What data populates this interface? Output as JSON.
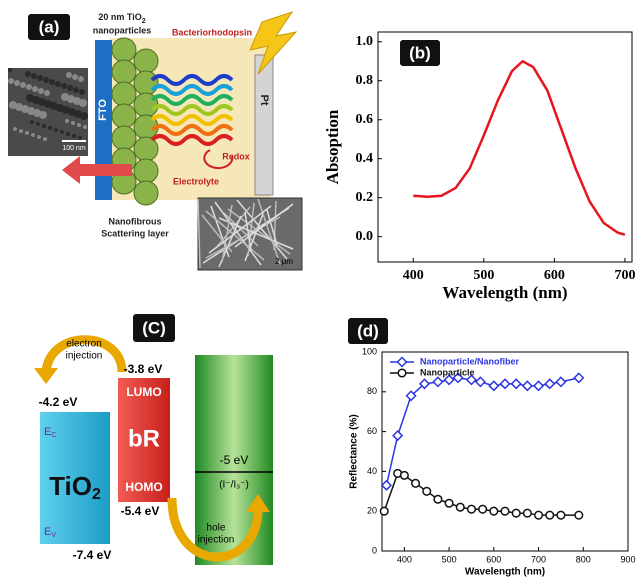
{
  "panel_a": {
    "label": "(a)",
    "nanoparticles": {
      "size": "20 nm TiO",
      "subscript": "2",
      "line2": "nanoparticles"
    },
    "bacteriorhodopsin": "Bacteriorhodopsin",
    "fto": "FTO",
    "pt": "Pt",
    "sem_scale": "100 nm",
    "redox": "Redox",
    "electrolyte": "Electrolyte",
    "scattering_layer": [
      "Nanofibrous",
      "Scattering layer"
    ],
    "fiber_scale": "2 μm"
  },
  "panel_c": {
    "label": "(C)",
    "electron_injection": [
      "electron",
      "injection"
    ],
    "lumo_energy": "-3.8 eV",
    "tio2_cb_energy": "-4.2 eV",
    "lumo": "LUMO",
    "br": "bR",
    "redox_energy": "-5 eV",
    "redox_couple": "(I⁻/I₃⁻)",
    "homo": "HOMO",
    "homo_energy": "-5.4 eV",
    "tio2": {
      "text": "TiO",
      "subscript": "2"
    },
    "ec": {
      "text": "E",
      "subscript": "C"
    },
    "ev": {
      "text": "E",
      "subscript": "V"
    },
    "tio2_vb_energy": "-7.4 eV",
    "hole_injection": [
      "hole",
      "injection"
    ]
  },
  "chart_data": [
    {
      "type": "line",
      "panel_label": "(b)",
      "x_label": "Wavelength (nm)",
      "y_label": "Absoption",
      "xlim": [
        350,
        710
      ],
      "ylim": [
        -0.13,
        1.05
      ],
      "xticks": [
        400,
        500,
        600,
        700
      ],
      "yticks": [
        {
          "value": 0,
          "label": "0.0"
        },
        0.2,
        0.4,
        0.6,
        0.8,
        {
          "value": 1,
          "label": "1.0"
        }
      ],
      "grid": false,
      "series": [
        {
          "color": "#e8141b",
          "marker": "none",
          "x": [
            400,
            420,
            440,
            460,
            480,
            500,
            520,
            540,
            555,
            570,
            590,
            610,
            630,
            650,
            670,
            690,
            700
          ],
          "values": [
            0.21,
            0.205,
            0.21,
            0.25,
            0.35,
            0.52,
            0.7,
            0.85,
            0.9,
            0.87,
            0.75,
            0.55,
            0.35,
            0.18,
            0.07,
            0.02,
            0.01
          ]
        }
      ]
    },
    {
      "type": "line",
      "panel_label": "(d)",
      "x_label": "Wavelength (nm)",
      "y_label": "Reflectance (%)",
      "xlim": [
        350,
        900
      ],
      "ylim": [
        0,
        100
      ],
      "xticks": [
        400,
        500,
        600,
        700,
        800,
        900
      ],
      "yticks": [
        0,
        20,
        40,
        60,
        80,
        100
      ],
      "grid": false,
      "legend": "upper left",
      "series": [
        {
          "name": "Nanoparticle/Nanofiber",
          "color": "#2b35e0",
          "marker": "diamond",
          "x": [
            360,
            385,
            415,
            445,
            475,
            500,
            520,
            550,
            570,
            600,
            625,
            650,
            675,
            700,
            725,
            750,
            790
          ],
          "values": [
            33,
            58,
            78,
            84,
            85,
            86,
            87,
            86,
            85,
            83,
            84,
            84,
            83,
            83,
            84,
            85,
            87
          ]
        },
        {
          "name": "Nanoparticle",
          "color": "#111111",
          "marker": "circle",
          "x": [
            355,
            385,
            400,
            425,
            450,
            475,
            500,
            525,
            550,
            575,
            600,
            625,
            650,
            675,
            700,
            725,
            750,
            790
          ],
          "values": [
            20,
            39,
            38,
            34,
            30,
            26,
            24,
            22,
            21,
            21,
            20,
            20,
            19,
            19,
            18,
            18,
            18,
            18
          ]
        }
      ]
    }
  ]
}
